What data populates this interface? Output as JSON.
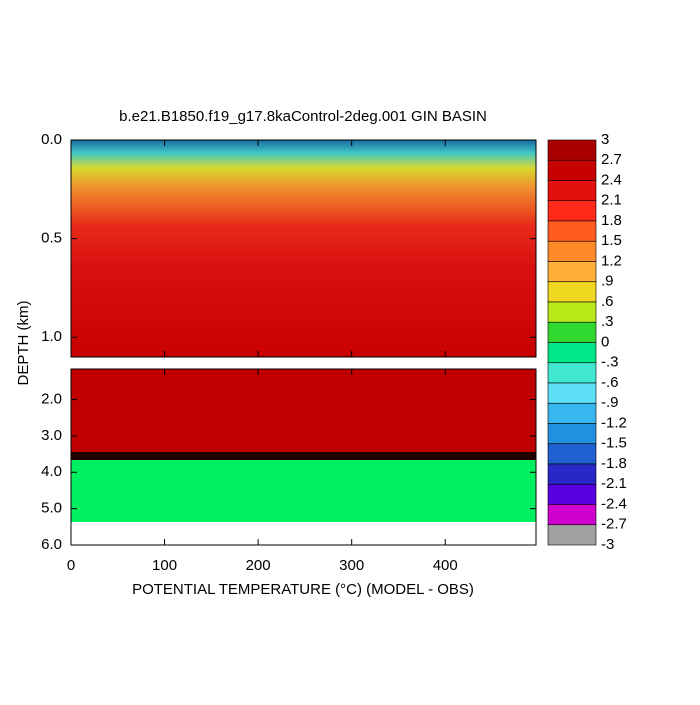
{
  "chart_data": {
    "type": "contour",
    "title": "b.e21.B1850.f19_g17.8kaControl-2deg.001 GIN BASIN",
    "x_label": "POTENTIAL TEMPERATURE (°C) (MODEL - OBS)",
    "y_label": "DEPTH (km)",
    "xlim": [
      0,
      497
    ],
    "xticks": [
      0,
      100,
      200,
      300,
      400
    ],
    "panels": [
      {
        "ylim": [
          1.1,
          0.0
        ],
        "yticks": [
          {
            "value": 0,
            "label": "0.0"
          },
          {
            "value": 0.5,
            "label": "0.5"
          },
          {
            "value": 1,
            "label": "1.0"
          }
        ]
      },
      {
        "ylim": [
          6.0,
          1.16
        ],
        "yticks": [
          {
            "value": 2,
            "label": "2.0"
          },
          {
            "value": 3,
            "label": "3.0"
          },
          {
            "value": 4,
            "label": "4.0"
          },
          {
            "value": 5,
            "label": "5.0"
          },
          {
            "value": 6,
            "label": "6.0"
          }
        ]
      }
    ],
    "colorbar": {
      "ticks": [
        3,
        {
          "value": 2.7,
          "label": "2.7"
        },
        {
          "value": 2.4,
          "label": "2.4"
        },
        {
          "value": 2.1,
          "label": "2.1"
        },
        {
          "value": 1.8,
          "label": "1.8"
        },
        {
          "value": 1.5,
          "label": "1.5"
        },
        {
          "value": 1.2,
          "label": "1.2"
        },
        {
          "value": 0.9,
          "label": ".9"
        },
        {
          "value": 0.6,
          "label": ".6"
        },
        {
          "value": 0.3,
          "label": ".3"
        },
        0,
        {
          "value": -0.3,
          "label": "-.3"
        },
        {
          "value": -0.6,
          "label": "-.6"
        },
        {
          "value": -0.9,
          "label": "-.9"
        },
        {
          "value": -1.2,
          "label": "-1.2"
        },
        {
          "value": -1.5,
          "label": "-1.5"
        },
        {
          "value": -1.8,
          "label": "-1.8"
        },
        {
          "value": -2.1,
          "label": "-2.1"
        },
        {
          "value": -2.4,
          "label": "-2.4"
        },
        {
          "value": -2.7,
          "label": "-2.7"
        },
        -3
      ],
      "colors": [
        "#a80000",
        "#c80000",
        "#e41010",
        "#ff2a1a",
        "#ff5a20",
        "#ff8a28",
        "#ffb038",
        "#f0d820",
        "#b8e818",
        "#30d830",
        "#00e888",
        "#40e8d0",
        "#60e0f8",
        "#38b8f0",
        "#2090e0",
        "#2060d0",
        "#2828c8",
        "#5800e0",
        "#d000d0",
        "#a0a0a0"
      ]
    }
  }
}
